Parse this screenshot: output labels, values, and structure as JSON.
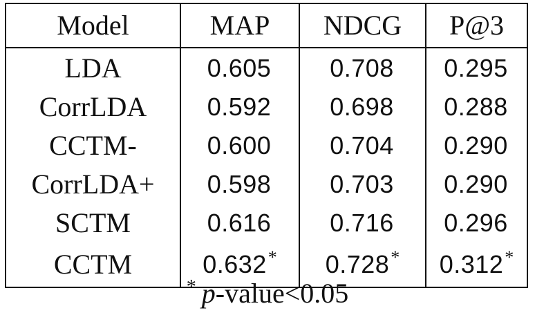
{
  "table": {
    "headers": [
      "Model",
      "MAP",
      "NDCG",
      "P@3"
    ],
    "rows": [
      {
        "model": "LDA",
        "map": "0.605",
        "map_sig": "",
        "ndcg": "0.708",
        "ndcg_sig": "",
        "p3": "0.295",
        "p3_sig": ""
      },
      {
        "model": "CorrLDA",
        "map": "0.592",
        "map_sig": "",
        "ndcg": "0.698",
        "ndcg_sig": "",
        "p3": "0.288",
        "p3_sig": ""
      },
      {
        "model": "CCTM-",
        "map": "0.600",
        "map_sig": "",
        "ndcg": "0.704",
        "ndcg_sig": "",
        "p3": "0.290",
        "p3_sig": ""
      },
      {
        "model": "CorrLDA+",
        "map": "0.598",
        "map_sig": "",
        "ndcg": "0.703",
        "ndcg_sig": "",
        "p3": "0.290",
        "p3_sig": ""
      },
      {
        "model": "SCTM",
        "map": "0.616",
        "map_sig": "",
        "ndcg": "0.716",
        "ndcg_sig": "",
        "p3": "0.296",
        "p3_sig": ""
      },
      {
        "model": "CCTM",
        "map": "0.632",
        "map_sig": "*",
        "ndcg": "0.728",
        "ndcg_sig": "*",
        "p3": "0.312",
        "p3_sig": "*"
      }
    ]
  },
  "footnote": {
    "marker": "*",
    "p": "p",
    "rest": "-value<0.05"
  }
}
